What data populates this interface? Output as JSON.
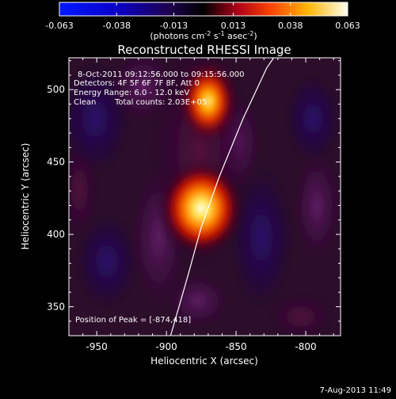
{
  "colorbar": {
    "ticks": [
      "-0.063",
      "-0.038",
      "-0.013",
      "0.013",
      "0.038",
      "0.063"
    ],
    "tick_values": [
      -0.063,
      -0.038,
      -0.013,
      0.013,
      0.038,
      0.063
    ],
    "range": [
      -0.063,
      0.063
    ],
    "units_prefix": "(photons cm",
    "units_exp1": "-2",
    "units_mid": " s",
    "units_exp2": "-1",
    "units_mid2": " asec",
    "units_exp3": "-2",
    "units_suffix": ")"
  },
  "plot": {
    "title": "Reconstructed RHESSI Image",
    "xlabel": "Heliocentric X (arcsec)",
    "ylabel": "Heliocentric Y (arcsec)",
    "xlim": [
      -970,
      -775
    ],
    "ylim": [
      330,
      522
    ],
    "xticks": [
      "-950",
      "-900",
      "-850",
      "-800"
    ],
    "xtick_values": [
      -950,
      -900,
      -850,
      -800
    ],
    "yticks": [
      "350",
      "400",
      "450",
      "500"
    ],
    "ytick_values": [
      350,
      400,
      450,
      500
    ],
    "info": {
      "time_range": "8-Oct-2011 09:12:56.000 to 09:15:56.000",
      "detectors": "Detectors: 4F 5F 6F 7F 8F, Att 0",
      "energy": "Energy Range: 6.0 - 12.0 keV",
      "method": "Clean",
      "counts": "Total counts: 2.03E+05"
    },
    "peak_text": "Position of Peak = [-874,418]",
    "sources": [
      {
        "x": -875,
        "y": 418,
        "amplitude": 1.0
      },
      {
        "x": -870,
        "y": 492,
        "amplitude": 0.7
      }
    ],
    "limb_curve": [
      [
        -897,
        330
      ],
      [
        -885,
        370
      ],
      [
        -875,
        405
      ],
      [
        -862,
        440
      ],
      [
        -845,
        480
      ],
      [
        -828,
        515
      ],
      [
        -823,
        522
      ]
    ]
  },
  "footer": {
    "timestamp": "7-Aug-2013 11:49"
  },
  "colors": {
    "background": "#000000",
    "foreground": "#ffffff"
  }
}
